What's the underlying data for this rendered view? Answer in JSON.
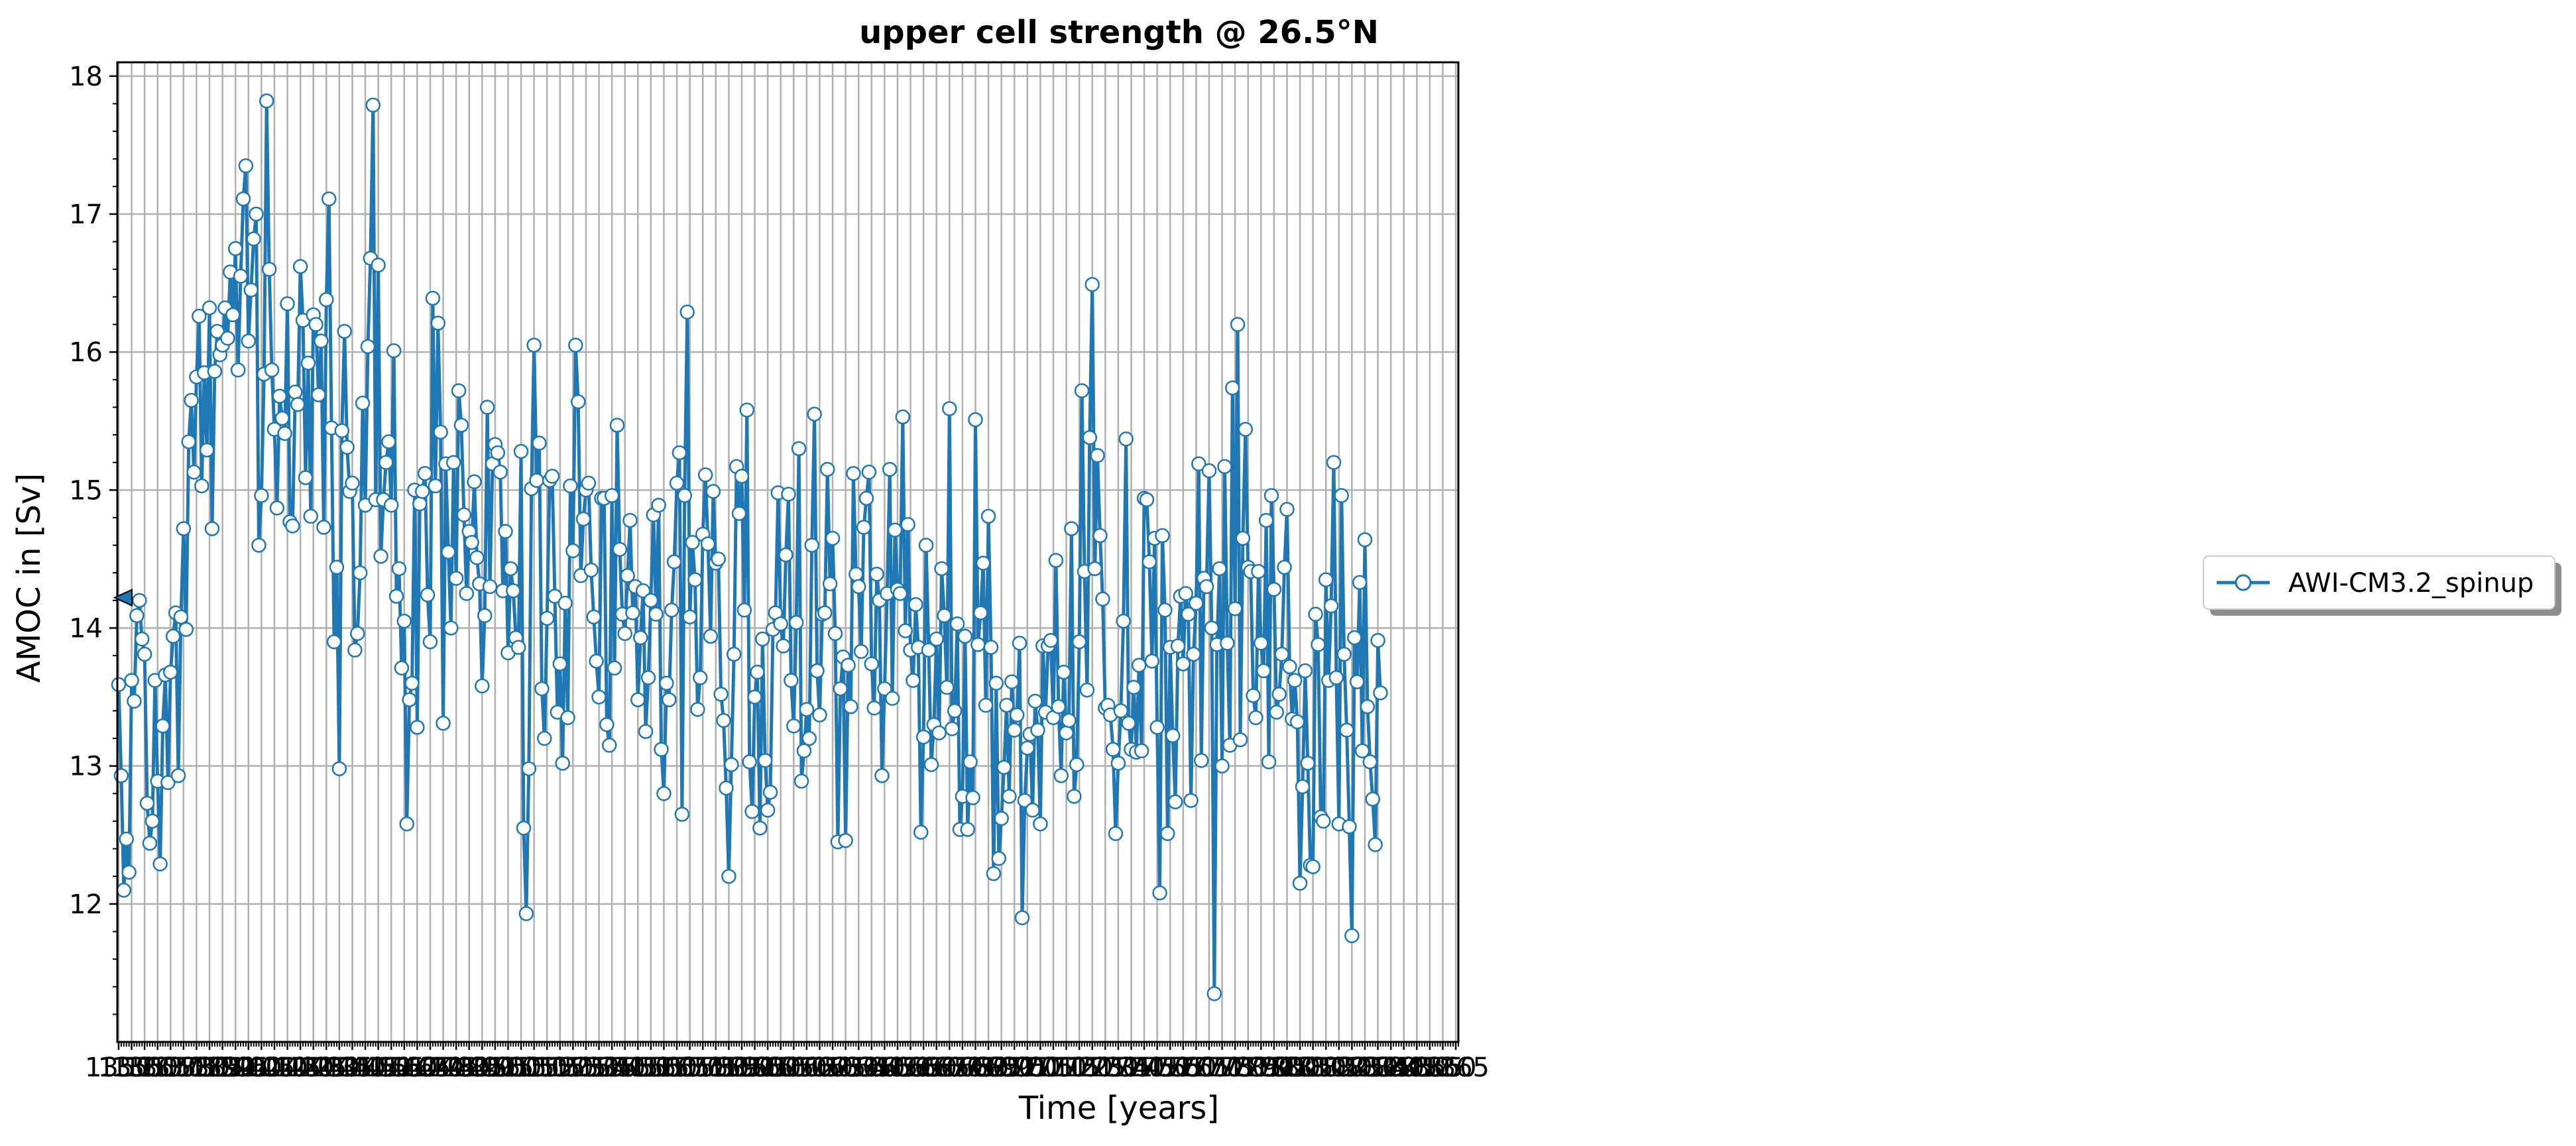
{
  "chart_data": {
    "type": "line",
    "title": "upper cell strength @ 26.5°N",
    "xlabel": "Time [years]",
    "ylabel": "AMOC in [Sv]",
    "xlim": [
      1349.5,
      1866
    ],
    "ylim": [
      11.0,
      18.1
    ],
    "yticks": [
      12,
      13,
      14,
      15,
      16,
      17,
      18
    ],
    "grid": true,
    "legend_position": "right (outside plot area)",
    "reference_marker": {
      "axis": "y",
      "value": 14.22
    },
    "colors": {
      "line": "#1f77b4",
      "marker_fill": "#ffffff",
      "grid": "#b0b0b0",
      "marker_edge": "#1f77b4"
    },
    "series": [
      {
        "name": "AWI-CM3.2_spinup",
        "x_start": 1350,
        "x_step": 1,
        "values": [
          13.59,
          12.93,
          12.1,
          12.47,
          12.23,
          13.62,
          13.47,
          14.09,
          14.2,
          13.92,
          13.81,
          12.73,
          12.44,
          12.6,
          13.62,
          12.89,
          12.29,
          13.29,
          13.66,
          12.88,
          13.68,
          13.94,
          14.11,
          12.93,
          14.08,
          14.72,
          13.99,
          15.35,
          15.65,
          15.13,
          15.82,
          16.26,
          15.03,
          15.85,
          15.29,
          16.32,
          14.72,
          15.86,
          16.15,
          15.98,
          16.05,
          16.32,
          16.1,
          16.58,
          16.27,
          16.75,
          15.87,
          16.55,
          17.11,
          17.35,
          16.08,
          16.45,
          16.82,
          17.0,
          14.6,
          14.96,
          15.84,
          17.82,
          16.6,
          15.87,
          15.44,
          14.87,
          15.68,
          15.52,
          15.41,
          16.35,
          14.77,
          14.74,
          15.71,
          15.62,
          16.62,
          16.23,
          15.09,
          15.92,
          14.81,
          16.27,
          16.2,
          15.69,
          16.08,
          14.73,
          16.38,
          17.11,
          15.45,
          13.9,
          14.44,
          12.98,
          15.43,
          16.15,
          15.31,
          14.99,
          15.05,
          13.84,
          13.96,
          14.4,
          15.63,
          14.89,
          16.04,
          16.68,
          17.79,
          14.93,
          16.63,
          14.52,
          14.93,
          15.2,
          15.35,
          14.89,
          16.01,
          14.23,
          14.43,
          13.71,
          14.05,
          12.58,
          13.48,
          13.6,
          15.0,
          13.28,
          14.9,
          14.99,
          15.12,
          14.24,
          13.9,
          16.39,
          15.03,
          16.21,
          15.42,
          13.31,
          15.19,
          14.55,
          14.0,
          15.2,
          14.36,
          15.72,
          15.47,
          14.82,
          14.25,
          14.7,
          14.62,
          15.06,
          14.51,
          14.32,
          13.58,
          14.09,
          15.6,
          14.3,
          15.19,
          15.33,
          15.27,
          15.13,
          14.27,
          14.7,
          13.82,
          14.43,
          14.27,
          13.93,
          13.86,
          15.28,
          12.55,
          11.93,
          12.98,
          15.01,
          16.05,
          15.07,
          15.34,
          13.56,
          13.2,
          14.07,
          15.07,
          15.1,
          14.23,
          13.39,
          13.74,
          13.02,
          14.18,
          13.35,
          15.03,
          14.56,
          16.05,
          15.64,
          14.38,
          14.79,
          15.0,
          15.05,
          14.42,
          14.08,
          13.76,
          13.5,
          14.94,
          14.94,
          13.3,
          13.15,
          14.96,
          13.71,
          15.47,
          14.57,
          14.1,
          13.96,
          14.38,
          14.78,
          14.11,
          14.3,
          13.48,
          13.93,
          14.27,
          13.25,
          13.64,
          14.2,
          14.82,
          14.1,
          14.89,
          13.12,
          12.8,
          13.6,
          13.48,
          14.13,
          14.48,
          15.05,
          15.27,
          12.65,
          14.96,
          16.29,
          14.08,
          14.62,
          14.35,
          13.41,
          13.64,
          14.68,
          15.11,
          14.61,
          13.94,
          14.99,
          14.47,
          14.5,
          13.52,
          13.33,
          12.84,
          12.2,
          13.01,
          13.81,
          15.17,
          14.83,
          15.1,
          14.13,
          15.58,
          13.03,
          12.67,
          13.5,
          13.68,
          12.55,
          13.92,
          13.04,
          12.68,
          12.81,
          13.99,
          14.11,
          14.98,
          14.03,
          13.87,
          14.53,
          14.97,
          13.62,
          13.29,
          14.04,
          15.3,
          12.89,
          13.11,
          13.41,
          13.2,
          14.6,
          15.55,
          13.69,
          13.37,
          14.1,
          14.11,
          15.15,
          14.32,
          14.65,
          13.96,
          12.45,
          13.56,
          13.79,
          12.46,
          13.73,
          13.43,
          15.12,
          14.39,
          14.3,
          13.83,
          14.73,
          14.94,
          15.13,
          13.74,
          13.42,
          14.39,
          14.2,
          12.93,
          13.56,
          14.25,
          15.15,
          13.49,
          14.71,
          14.28,
          14.25,
          15.53,
          13.98,
          14.75,
          13.84,
          13.62,
          14.17,
          13.86,
          12.52,
          13.21,
          14.6,
          13.84,
          13.01,
          13.3,
          13.92,
          13.24,
          14.43,
          14.09,
          13.57,
          15.59,
          13.27,
          13.4,
          14.03,
          12.54,
          12.78,
          13.94,
          12.54,
          13.03,
          12.77,
          15.51,
          13.88,
          14.11,
          14.47,
          13.44,
          14.81,
          13.86,
          12.22,
          13.6,
          12.33,
          12.62,
          12.99,
          13.44,
          12.78,
          13.61,
          13.26,
          13.37,
          13.89,
          11.9,
          12.75,
          13.13,
          13.23,
          12.68,
          13.47,
          13.26,
          12.58,
          13.87,
          13.39,
          13.87,
          13.91,
          13.35,
          14.49,
          13.43,
          12.93,
          13.68,
          13.24,
          13.33,
          14.72,
          12.78,
          13.01,
          13.9,
          15.72,
          14.41,
          13.55,
          15.38,
          16.49,
          14.43,
          15.25,
          14.67,
          14.21,
          13.42,
          13.44,
          13.37,
          13.12,
          12.51,
          13.02,
          13.4,
          14.05,
          15.37,
          13.31,
          13.12,
          13.57,
          13.1,
          13.73,
          13.11,
          14.94,
          14.93,
          14.48,
          13.76,
          14.65,
          13.28,
          12.08,
          14.67,
          14.13,
          12.51,
          13.86,
          13.22,
          12.74,
          13.87,
          14.23,
          13.74,
          14.25,
          14.1,
          12.75,
          13.81,
          14.18,
          15.19,
          13.04,
          14.36,
          14.3,
          15.14,
          14.0,
          11.35,
          13.88,
          14.43,
          13.0,
          15.17,
          13.89,
          13.15,
          15.74,
          14.14,
          16.2,
          13.19,
          14.65,
          15.44,
          14.44,
          14.41,
          13.51,
          13.35,
          14.41,
          13.89,
          13.69,
          14.78,
          13.03,
          14.96,
          14.28,
          13.39,
          13.52,
          13.81,
          14.44,
          14.86,
          13.72,
          13.34,
          13.62,
          13.32,
          12.15,
          12.85,
          13.69,
          13.02,
          12.28,
          12.27,
          14.1,
          13.88,
          12.63,
          12.6,
          14.35,
          13.62,
          14.16,
          15.2,
          13.64,
          12.58,
          14.96,
          13.81,
          13.26,
          12.56,
          11.77,
          13.93,
          13.61,
          14.33,
          13.11,
          14.64,
          13.43,
          13.03,
          12.76,
          12.43,
          13.91,
          13.53
        ]
      }
    ]
  }
}
